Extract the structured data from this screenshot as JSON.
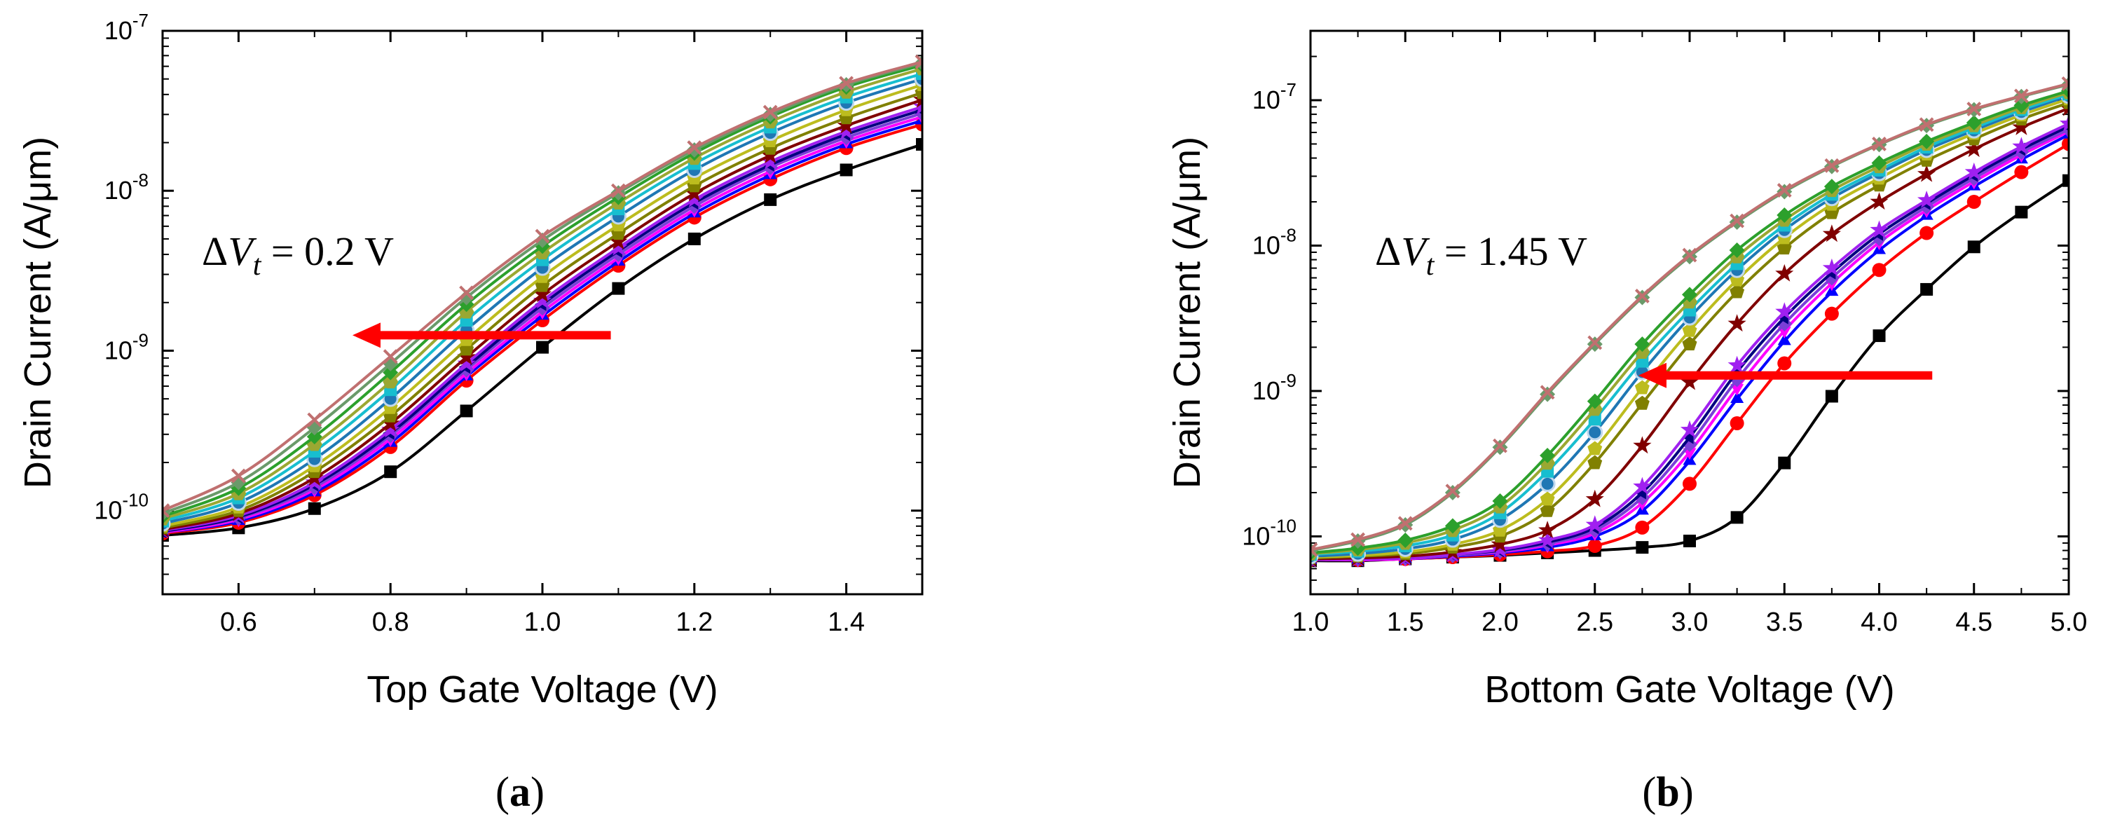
{
  "chart_data": [
    {
      "type": "line",
      "panel_label": "(a)",
      "xlabel": "Top Gate Voltage (V)",
      "ylabel": "Drain Current (A/μm)",
      "xlim": [
        0.5,
        1.5
      ],
      "ylim": [
        3e-11,
        1e-07
      ],
      "y_scale": "log",
      "x_ticks": [
        "0.6",
        "0.8",
        "1.0",
        "1.2",
        "1.4"
      ],
      "y_ticks": [
        {
          "base": "10",
          "exp": "-10",
          "value": 1e-10
        },
        {
          "base": "10",
          "exp": "-9",
          "value": 1e-09
        },
        {
          "base": "10",
          "exp": "-8",
          "value": 1e-08
        },
        {
          "base": "10",
          "exp": "-7",
          "value": 1e-07
        }
      ],
      "annotation": {
        "delta": "Δ",
        "symbol": "V",
        "subscript": "t",
        "rest": " = 0.2 V"
      },
      "arrow": {
        "from_x": 1.09,
        "to_x": 0.75,
        "y": 1.25e-09,
        "color": "#ff0000"
      },
      "x": [
        0.5,
        0.6,
        0.7,
        0.8,
        0.9,
        1.0,
        1.1,
        1.2,
        1.3,
        1.4,
        1.5
      ],
      "series": [
        {
          "color": "#000000",
          "marker": "square",
          "values": [
            7e-11,
            7.8e-11,
            1.03e-10,
            1.75e-10,
            4.2e-10,
            1.05e-09,
            2.45e-09,
            5e-09,
            8.8e-09,
            1.35e-08,
            1.95e-08
          ]
        },
        {
          "color": "#ff0000",
          "marker": "circle",
          "values": [
            7.2e-11,
            8.4e-11,
            1.25e-10,
            2.5e-10,
            6.5e-10,
            1.55e-09,
            3.4e-09,
            6.8e-09,
            1.18e-08,
            1.85e-08,
            2.6e-08
          ]
        },
        {
          "color": "#0000ff",
          "marker": "triangle-up",
          "values": [
            7.3e-11,
            8.6e-11,
            1.3e-10,
            2.65e-10,
            6.9e-10,
            1.65e-09,
            3.6e-09,
            7.2e-09,
            1.25e-08,
            1.95e-08,
            2.75e-08
          ]
        },
        {
          "color": "#ff00ff",
          "marker": "triangle-down",
          "values": [
            7.3e-11,
            8.8e-11,
            1.35e-10,
            2.8e-10,
            7.2e-10,
            1.75e-09,
            3.8e-09,
            7.6e-09,
            1.32e-08,
            2.05e-08,
            2.9e-08
          ]
        },
        {
          "color": "#7b3fd8",
          "marker": "diamond",
          "values": [
            7.4e-11,
            9e-11,
            1.4e-10,
            2.95e-10,
            7.6e-10,
            1.85e-09,
            4e-09,
            8e-09,
            1.4e-08,
            2.15e-08,
            3.05e-08
          ]
        },
        {
          "color": "#000080",
          "marker": "triangle-left",
          "values": [
            7.4e-11,
            9.1e-11,
            1.45e-10,
            3.05e-10,
            7.9e-10,
            1.95e-09,
            4.2e-09,
            8.4e-09,
            1.45e-08,
            2.25e-08,
            3.2e-08
          ]
        },
        {
          "color": "#a020f0",
          "marker": "star",
          "values": [
            7.5e-11,
            9.3e-11,
            1.5e-10,
            3.2e-10,
            8.3e-10,
            2.05e-09,
            4.4e-09,
            8.8e-09,
            1.52e-08,
            2.35e-08,
            3.35e-08
          ]
        },
        {
          "color": "#800000",
          "marker": "star",
          "values": [
            7.6e-11,
            9.6e-11,
            1.6e-10,
            3.5e-10,
            9.1e-10,
            2.25e-09,
            4.8e-09,
            9.6e-09,
            1.66e-08,
            2.55e-08,
            3.7e-08
          ]
        },
        {
          "color": "#808000",
          "marker": "pentagon",
          "values": [
            7.8e-11,
            1e-10,
            1.75e-10,
            3.9e-10,
            1.02e-09,
            2.55e-09,
            5.4e-09,
            1.07e-08,
            1.84e-08,
            2.85e-08,
            4.1e-08
          ]
        },
        {
          "color": "#bcbc1e",
          "marker": "pentagon",
          "values": [
            8e-11,
            1.05e-10,
            1.9e-10,
            4.4e-10,
            1.17e-09,
            2.9e-09,
            6.1e-09,
            1.2e-08,
            2.05e-08,
            3.2e-08,
            4.6e-08
          ]
        },
        {
          "color": "#1f77b4",
          "marker": "circle",
          "values": [
            8.3e-11,
            1.12e-10,
            2.1e-10,
            5e-10,
            1.35e-09,
            3.3e-09,
            6.9e-09,
            1.35e-08,
            2.3e-08,
            3.55e-08,
            5e-08
          ]
        },
        {
          "color": "#17becf",
          "marker": "square",
          "values": [
            8.6e-11,
            1.2e-10,
            2.35e-10,
            5.7e-10,
            1.55e-09,
            3.7e-09,
            7.7e-09,
            1.48e-08,
            2.5e-08,
            3.85e-08,
            5.4e-08
          ]
        },
        {
          "color": "#9aa832",
          "marker": "hexagon",
          "values": [
            8.9e-11,
            1.28e-10,
            2.6e-10,
            6.4e-10,
            1.75e-09,
            4.1e-09,
            8.4e-09,
            1.6e-08,
            2.7e-08,
            4.15e-08,
            5.8e-08
          ]
        },
        {
          "color": "#2ca02c",
          "marker": "diamond",
          "values": [
            9.2e-11,
            1.38e-10,
            2.9e-10,
            7.3e-10,
            1.95e-09,
            4.5e-09,
            9.1e-09,
            1.72e-08,
            2.9e-08,
            4.45e-08,
            6.1e-08
          ]
        },
        {
          "color": "#6a9a6a",
          "marker": "diamond",
          "values": [
            9.6e-11,
            1.5e-10,
            3.3e-10,
            8.3e-10,
            2.15e-09,
            4.9e-09,
            9.7e-09,
            1.8e-08,
            3e-08,
            4.6e-08,
            6.3e-08
          ]
        },
        {
          "color": "#c07070",
          "marker": "cross",
          "values": [
            1e-10,
            1.65e-10,
            3.7e-10,
            9.2e-10,
            2.3e-09,
            5.2e-09,
            1e-08,
            1.86e-08,
            3.1e-08,
            4.7e-08,
            6.4e-08
          ]
        }
      ]
    },
    {
      "type": "line",
      "panel_label": "(b)",
      "xlabel": "Bottom Gate Voltage (V)",
      "ylabel": "Drain Current (A/μm)",
      "xlim": [
        1.0,
        5.0
      ],
      "ylim": [
        4e-11,
        3e-07
      ],
      "y_scale": "log",
      "x_ticks": [
        "1.0",
        "1.5",
        "2.0",
        "2.5",
        "3.0",
        "3.5",
        "4.0",
        "4.5",
        "5.0"
      ],
      "y_ticks": [
        {
          "base": "10",
          "exp": "-10",
          "value": 1e-10
        },
        {
          "base": "10",
          "exp": "-9",
          "value": 1e-09
        },
        {
          "base": "10",
          "exp": "-8",
          "value": 1e-08
        },
        {
          "base": "10",
          "exp": "-7",
          "value": 1e-07
        }
      ],
      "annotation": {
        "delta": "Δ",
        "symbol": "V",
        "subscript": "t",
        "rest": " = 1.45 V"
      },
      "arrow": {
        "from_x": 4.28,
        "to_x": 2.73,
        "y": 1.28e-09,
        "color": "#ff0000"
      },
      "x": [
        1.0,
        1.25,
        1.5,
        1.75,
        2.0,
        2.25,
        2.5,
        2.75,
        3.0,
        3.25,
        3.5,
        3.75,
        4.0,
        4.25,
        4.5,
        4.75,
        5.0
      ],
      "series": [
        {
          "color": "#000000",
          "marker": "square",
          "values": [
            6.8e-11,
            6.8e-11,
            7e-11,
            7.2e-11,
            7.4e-11,
            7.7e-11,
            8e-11,
            8.4e-11,
            9.3e-11,
            1.35e-10,
            3.2e-10,
            9.2e-10,
            2.4e-09,
            5e-09,
            9.8e-09,
            1.7e-08,
            2.8e-08
          ]
        },
        {
          "color": "#ff0000",
          "marker": "circle",
          "values": [
            6.9e-11,
            6.9e-11,
            7e-11,
            7.2e-11,
            7.5e-11,
            7.9e-11,
            8.6e-11,
            1.15e-10,
            2.3e-10,
            6e-10,
            1.55e-09,
            3.4e-09,
            6.8e-09,
            1.22e-08,
            2e-08,
            3.2e-08,
            5e-08
          ]
        },
        {
          "color": "#0000ff",
          "marker": "triangle-up",
          "values": [
            6.9e-11,
            6.9e-11,
            7e-11,
            7.3e-11,
            7.7e-11,
            8.4e-11,
            1e-10,
            1.5e-10,
            3.3e-10,
            8.8e-10,
            2.2e-09,
            4.8e-09,
            9.3e-09,
            1.6e-08,
            2.55e-08,
            3.9e-08,
            5.8e-08
          ]
        },
        {
          "color": "#ff00ff",
          "marker": "triangle-down",
          "values": [
            6.9e-11,
            6.9e-11,
            7e-11,
            7.4e-11,
            7.8e-11,
            8.7e-11,
            1.05e-10,
            1.7e-10,
            3.8e-10,
            1.05e-09,
            2.6e-09,
            5.5e-09,
            1.05e-08,
            1.75e-08,
            2.75e-08,
            4.2e-08,
            6.1e-08
          ]
        },
        {
          "color": "#7b3fd8",
          "marker": "diamond",
          "values": [
            6.9e-11,
            7e-11,
            7.1e-11,
            7.4e-11,
            7.9e-11,
            8.9e-11,
            1.1e-10,
            1.85e-10,
            4.3e-10,
            1.2e-09,
            2.9e-09,
            6e-09,
            1.12e-08,
            1.85e-08,
            2.9e-08,
            4.4e-08,
            6.3e-08
          ]
        },
        {
          "color": "#000080",
          "marker": "triangle-left",
          "values": [
            6.9e-11,
            7e-11,
            7.1e-11,
            7.5e-11,
            8e-11,
            9.1e-11,
            1.15e-10,
            2e-10,
            4.8e-10,
            1.35e-09,
            3.2e-09,
            6.5e-09,
            1.2e-08,
            1.95e-08,
            3.05e-08,
            4.6e-08,
            6.6e-08
          ]
        },
        {
          "color": "#a020f0",
          "marker": "star",
          "values": [
            6.9e-11,
            7e-11,
            7.1e-11,
            7.5e-11,
            8.1e-11,
            9.4e-11,
            1.2e-10,
            2.2e-10,
            5.4e-10,
            1.5e-09,
            3.5e-09,
            7e-09,
            1.28e-08,
            2.05e-08,
            3.2e-08,
            4.8e-08,
            6.9e-08
          ]
        },
        {
          "color": "#800000",
          "marker": "star",
          "values": [
            7e-11,
            7.1e-11,
            7.3e-11,
            7.8e-11,
            8.8e-11,
            1.1e-10,
            1.8e-10,
            4.2e-10,
            1.15e-09,
            2.9e-09,
            6.4e-09,
            1.2e-08,
            2e-08,
            3.1e-08,
            4.6e-08,
            6.5e-08,
            8.8e-08
          ]
        },
        {
          "color": "#808000",
          "marker": "pentagon",
          "values": [
            7.1e-11,
            7.3e-11,
            7.6e-11,
            8.4e-11,
            1e-10,
            1.5e-10,
            3.2e-10,
            8.2e-10,
            2.1e-09,
            4.8e-09,
            9.6e-09,
            1.68e-08,
            2.6e-08,
            3.85e-08,
            5.4e-08,
            7.4e-08,
            9.6e-08
          ]
        },
        {
          "color": "#bcbc1e",
          "marker": "pentagon",
          "values": [
            7.2e-11,
            7.4e-11,
            7.8e-11,
            8.8e-11,
            1.1e-10,
            1.8e-10,
            4e-10,
            1.05e-09,
            2.6e-09,
            5.8e-09,
            1.13e-08,
            1.92e-08,
            2.9e-08,
            4.25e-08,
            5.9e-08,
            7.9e-08,
            1.02e-07
          ]
        },
        {
          "color": "#1f77b4",
          "marker": "circle",
          "values": [
            7.3e-11,
            7.6e-11,
            8.2e-11,
            9.5e-11,
            1.3e-10,
            2.3e-10,
            5.2e-10,
            1.35e-09,
            3.2e-09,
            6.8e-09,
            1.28e-08,
            2.12e-08,
            3.15e-08,
            4.55e-08,
            6.2e-08,
            8.3e-08,
            1.07e-07
          ]
        },
        {
          "color": "#17becf",
          "marker": "square",
          "values": [
            7.5e-11,
            7.9e-11,
            8.6e-11,
            1.02e-10,
            1.45e-10,
            2.8e-10,
            6.4e-10,
            1.6e-09,
            3.6e-09,
            7.5e-09,
            1.38e-08,
            2.25e-08,
            3.3e-08,
            4.75e-08,
            6.45e-08,
            8.6e-08,
            1.1e-07
          ]
        },
        {
          "color": "#9aa832",
          "marker": "hexagon",
          "values": [
            7.6e-11,
            8.1e-11,
            9e-11,
            1.1e-10,
            1.6e-10,
            3.2e-10,
            7.5e-10,
            1.85e-09,
            4.1e-09,
            8.4e-09,
            1.5e-08,
            2.4e-08,
            3.5e-08,
            5e-08,
            6.7e-08,
            8.9e-08,
            1.13e-07
          ]
        },
        {
          "color": "#2ca02c",
          "marker": "diamond",
          "values": [
            7.7e-11,
            8.3e-11,
            9.4e-11,
            1.18e-10,
            1.75e-10,
            3.6e-10,
            8.5e-10,
            2.1e-09,
            4.6e-09,
            9.3e-09,
            1.62e-08,
            2.55e-08,
            3.7e-08,
            5.2e-08,
            7e-08,
            9.2e-08,
            1.16e-07
          ]
        },
        {
          "color": "#6a9a6a",
          "marker": "diamond",
          "values": [
            8e-11,
            9.3e-11,
            1.2e-10,
            2e-10,
            4.1e-10,
            9.5e-10,
            2.1e-09,
            4.4e-09,
            8.4e-09,
            1.45e-08,
            2.35e-08,
            3.5e-08,
            4.95e-08,
            6.7e-08,
            8.6e-08,
            1.06e-07,
            1.28e-07
          ]
        },
        {
          "color": "#c07070",
          "marker": "cross",
          "values": [
            8.1e-11,
            9.5e-11,
            1.23e-10,
            2.05e-10,
            4.2e-10,
            9.8e-10,
            2.15e-09,
            4.5e-09,
            8.6e-09,
            1.48e-08,
            2.4e-08,
            3.55e-08,
            5e-08,
            6.8e-08,
            8.7e-08,
            1.07e-07,
            1.3e-07
          ]
        }
      ]
    }
  ]
}
